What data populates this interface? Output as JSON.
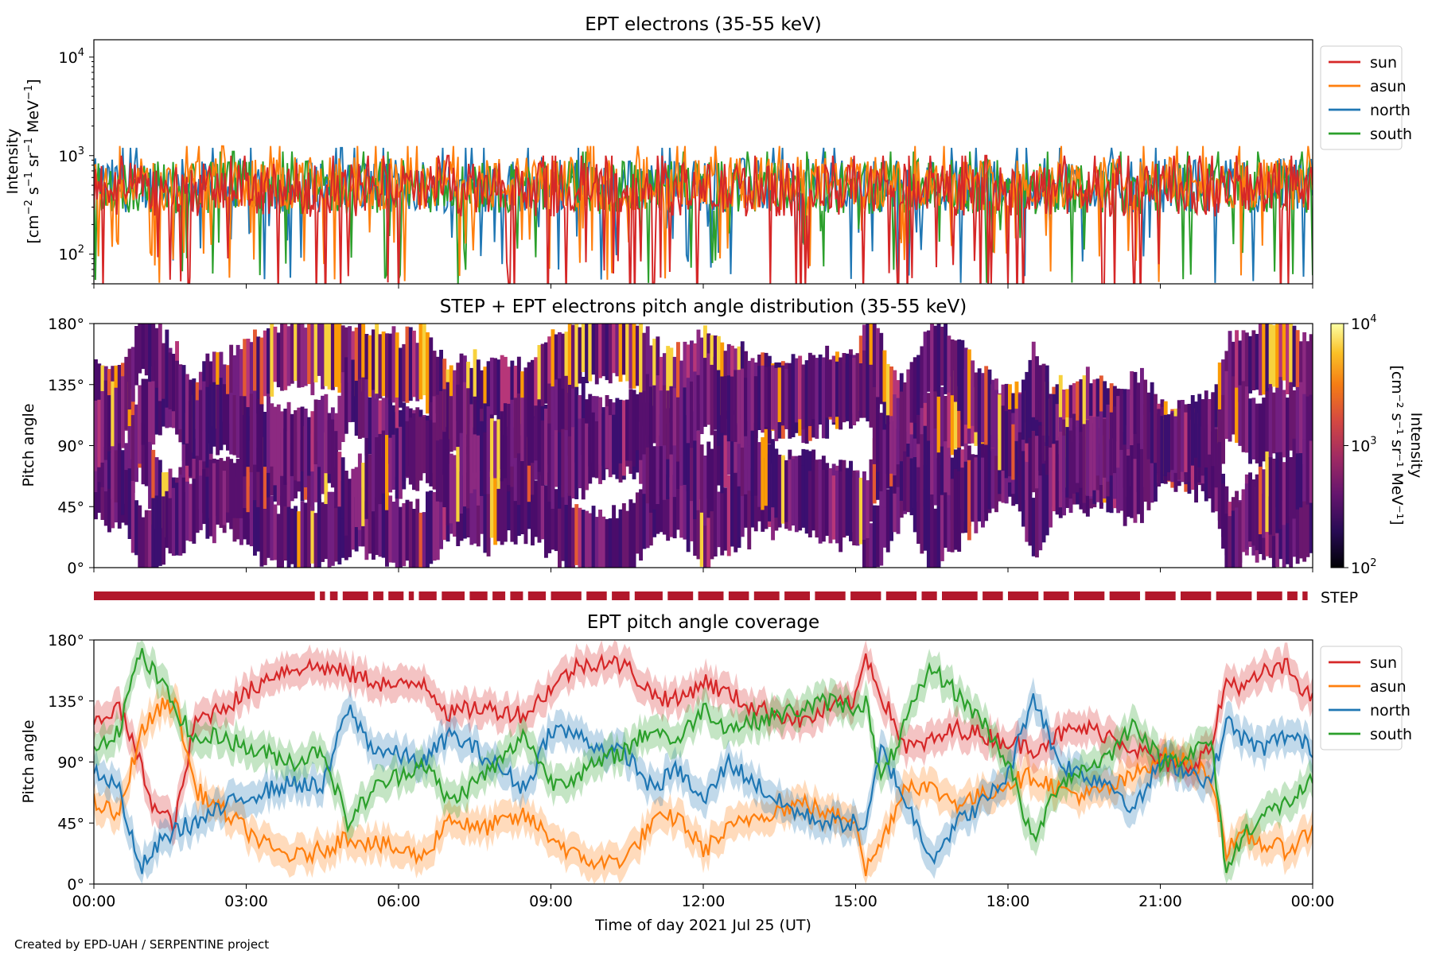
{
  "credit": "Created by EPD-UAH / SERPENTINE project",
  "x_axis": {
    "label": "Time of day 2021 Jul 25 (UT)",
    "ticks": [
      "00:00",
      "03:00",
      "06:00",
      "09:00",
      "12:00",
      "15:00",
      "18:00",
      "21:00",
      "00:00"
    ],
    "range_hours": [
      0,
      24
    ]
  },
  "colors": {
    "sun": "#d62728",
    "asun": "#ff7f0e",
    "north": "#1f77b4",
    "south": "#2ca02c",
    "step_bar": "#b2182b"
  },
  "legend": {
    "entries": [
      "sun",
      "asun",
      "north",
      "south"
    ],
    "placement": "outside-right"
  },
  "chart_data": [
    {
      "type": "line",
      "title": "EPT electrons (35-55 keV)",
      "ylabel_main": "Intensity",
      "ylabel_unit_base": "[cm",
      "ylabel_unit_exp1": "−2",
      "ylabel_unit_mid1": " s",
      "ylabel_unit_exp2": "−1",
      "ylabel_unit_mid2": " sr",
      "ylabel_unit_exp3": "−1",
      "ylabel_unit_mid3": " MeV",
      "ylabel_unit_exp4": "−1",
      "ylabel_unit_end": "]",
      "yscale": "log",
      "ylim": [
        50,
        15000
      ],
      "yticks": [
        {
          "base": "10",
          "exp": "2",
          "value": 100
        },
        {
          "base": "10",
          "exp": "3",
          "value": 1000
        },
        {
          "base": "10",
          "exp": "4",
          "value": 10000
        }
      ],
      "series": [
        {
          "name": "north",
          "typical_value": 500,
          "min_typical": 200,
          "max_typical": 1200
        },
        {
          "name": "south",
          "typical_value": 480,
          "min_typical": 180,
          "max_typical": 1100
        },
        {
          "name": "asun",
          "typical_value": 520,
          "min_typical": 200,
          "max_typical": 1250
        },
        {
          "name": "sun",
          "typical_value": 450,
          "min_typical": 100,
          "max_typical": 1000
        }
      ]
    },
    {
      "type": "heatmap",
      "title": "STEP + EPT electrons pitch angle distribution (35-55 keV)",
      "ylabel": "Pitch angle",
      "ylim": [
        0,
        180
      ],
      "yticks": [
        "0°",
        "45°",
        "90°",
        "135°",
        "180°"
      ],
      "colorbar": {
        "label_main": "Intensity",
        "label_unit": "[cm⁻² s⁻¹ sr⁻¹ MeV⁻¹]",
        "scale": "log",
        "range": [
          100,
          10000
        ],
        "ticks": [
          {
            "base": "10",
            "exp": "2",
            "value": 100
          },
          {
            "base": "10",
            "exp": "3",
            "value": 1000
          },
          {
            "base": "10",
            "exp": "4",
            "value": 10000
          }
        ],
        "colormap": "inferno"
      },
      "step_label": "STEP"
    },
    {
      "type": "line",
      "title": "EPT pitch angle coverage",
      "ylabel": "Pitch angle",
      "ylim": [
        0,
        180
      ],
      "yticks": [
        "0°",
        "45°",
        "90°",
        "135°",
        "180°"
      ],
      "series": [
        {
          "name": "sun",
          "keyframes": [
            [
              0,
              120
            ],
            [
              0.5,
              130
            ],
            [
              0.9,
              90
            ],
            [
              1.2,
              55
            ],
            [
              1.6,
              45
            ],
            [
              2.0,
              120
            ],
            [
              2.5,
              130
            ],
            [
              3.0,
              140
            ],
            [
              3.5,
              155
            ],
            [
              4.0,
              160
            ],
            [
              4.5,
              160
            ],
            [
              5.0,
              155
            ],
            [
              5.5,
              150
            ],
            [
              6.0,
              145
            ],
            [
              6.5,
              150
            ],
            [
              7.0,
              125
            ],
            [
              7.5,
              130
            ],
            [
              8.0,
              128
            ],
            [
              8.5,
              125
            ],
            [
              9.0,
              145
            ],
            [
              9.5,
              160
            ],
            [
              10.0,
              165
            ],
            [
              10.5,
              160
            ],
            [
              11.0,
              140
            ],
            [
              11.5,
              135
            ],
            [
              12.0,
              150
            ],
            [
              12.5,
              140
            ],
            [
              13.0,
              130
            ],
            [
              13.5,
              125
            ],
            [
              14.0,
              120
            ],
            [
              14.5,
              130
            ],
            [
              15.0,
              135
            ],
            [
              15.2,
              170
            ],
            [
              15.5,
              140
            ],
            [
              16.0,
              100
            ],
            [
              16.5,
              105
            ],
            [
              17.0,
              115
            ],
            [
              17.5,
              110
            ],
            [
              18.0,
              105
            ],
            [
              18.5,
              100
            ],
            [
              19.0,
              110
            ],
            [
              19.5,
              115
            ],
            [
              20.0,
              110
            ],
            [
              20.5,
              100
            ],
            [
              21.0,
              90
            ],
            [
              21.5,
              85
            ],
            [
              22.0,
              100
            ],
            [
              22.3,
              150
            ],
            [
              22.7,
              145
            ],
            [
              23.0,
              155
            ],
            [
              23.5,
              160
            ],
            [
              24.0,
              135
            ]
          ]
        },
        {
          "name": "asun",
          "keyframes": [
            [
              0,
              60
            ],
            [
              0.5,
              50
            ],
            [
              0.9,
              110
            ],
            [
              1.3,
              130
            ],
            [
              1.6,
              135
            ],
            [
              2.0,
              70
            ],
            [
              2.5,
              55
            ],
            [
              3.0,
              40
            ],
            [
              3.5,
              25
            ],
            [
              4.0,
              20
            ],
            [
              4.5,
              25
            ],
            [
              5.0,
              35
            ],
            [
              5.5,
              30
            ],
            [
              6.0,
              25
            ],
            [
              6.5,
              20
            ],
            [
              7.0,
              50
            ],
            [
              7.5,
              40
            ],
            [
              8.0,
              45
            ],
            [
              8.5,
              50
            ],
            [
              9.0,
              35
            ],
            [
              9.5,
              20
            ],
            [
              10.0,
              15
            ],
            [
              10.5,
              20
            ],
            [
              11.0,
              45
            ],
            [
              11.5,
              50
            ],
            [
              12.0,
              25
            ],
            [
              12.5,
              40
            ],
            [
              13.0,
              50
            ],
            [
              13.5,
              55
            ],
            [
              14.0,
              60
            ],
            [
              14.5,
              50
            ],
            [
              15.0,
              50
            ],
            [
              15.2,
              10
            ],
            [
              15.5,
              30
            ],
            [
              16.0,
              75
            ],
            [
              16.5,
              70
            ],
            [
              17.0,
              60
            ],
            [
              17.5,
              65
            ],
            [
              18.0,
              75
            ],
            [
              18.5,
              80
            ],
            [
              19.0,
              70
            ],
            [
              19.5,
              65
            ],
            [
              20.0,
              70
            ],
            [
              20.5,
              80
            ],
            [
              21.0,
              95
            ],
            [
              21.5,
              90
            ],
            [
              22.0,
              80
            ],
            [
              22.3,
              25
            ],
            [
              22.7,
              35
            ],
            [
              23.0,
              30
            ],
            [
              23.5,
              25
            ],
            [
              24.0,
              40
            ]
          ]
        },
        {
          "name": "north",
          "keyframes": [
            [
              0,
              85
            ],
            [
              0.5,
              70
            ],
            [
              0.9,
              10
            ],
            [
              1.3,
              30
            ],
            [
              1.6,
              40
            ],
            [
              2.0,
              45
            ],
            [
              2.5,
              55
            ],
            [
              3.0,
              65
            ],
            [
              3.5,
              70
            ],
            [
              4.0,
              75
            ],
            [
              4.5,
              70
            ],
            [
              5.0,
              130
            ],
            [
              5.5,
              100
            ],
            [
              6.0,
              95
            ],
            [
              6.5,
              90
            ],
            [
              7.0,
              110
            ],
            [
              7.5,
              100
            ],
            [
              8.0,
              85
            ],
            [
              8.5,
              70
            ],
            [
              9.0,
              115
            ],
            [
              9.5,
              110
            ],
            [
              10.0,
              100
            ],
            [
              10.5,
              95
            ],
            [
              11.0,
              70
            ],
            [
              11.5,
              85
            ],
            [
              12.0,
              60
            ],
            [
              12.5,
              90
            ],
            [
              13.0,
              75
            ],
            [
              13.5,
              60
            ],
            [
              14.0,
              50
            ],
            [
              14.5,
              45
            ],
            [
              15.0,
              45
            ],
            [
              15.2,
              40
            ],
            [
              15.5,
              100
            ],
            [
              16.0,
              60
            ],
            [
              16.5,
              20
            ],
            [
              17.0,
              45
            ],
            [
              17.5,
              60
            ],
            [
              18.0,
              80
            ],
            [
              18.5,
              140
            ],
            [
              19.0,
              90
            ],
            [
              19.5,
              80
            ],
            [
              20.0,
              75
            ],
            [
              20.5,
              55
            ],
            [
              21.0,
              90
            ],
            [
              21.5,
              85
            ],
            [
              22.0,
              75
            ],
            [
              22.3,
              120
            ],
            [
              22.7,
              105
            ],
            [
              23.0,
              100
            ],
            [
              23.5,
              110
            ],
            [
              24.0,
              100
            ]
          ]
        },
        {
          "name": "south",
          "keyframes": [
            [
              0,
              100
            ],
            [
              0.5,
              115
            ],
            [
              0.9,
              170
            ],
            [
              1.3,
              150
            ],
            [
              1.6,
              130
            ],
            [
              2.0,
              105
            ],
            [
              2.5,
              110
            ],
            [
              3.0,
              100
            ],
            [
              3.5,
              95
            ],
            [
              4.0,
              90
            ],
            [
              4.5,
              100
            ],
            [
              5.0,
              45
            ],
            [
              5.5,
              70
            ],
            [
              6.0,
              80
            ],
            [
              6.5,
              90
            ],
            [
              7.0,
              60
            ],
            [
              7.5,
              75
            ],
            [
              8.0,
              90
            ],
            [
              8.5,
              110
            ],
            [
              9.0,
              75
            ],
            [
              9.5,
              80
            ],
            [
              10.0,
              90
            ],
            [
              10.5,
              100
            ],
            [
              11.0,
              115
            ],
            [
              11.5,
              105
            ],
            [
              12.0,
              130
            ],
            [
              12.5,
              115
            ],
            [
              13.0,
              120
            ],
            [
              13.5,
              125
            ],
            [
              14.0,
              130
            ],
            [
              14.5,
              135
            ],
            [
              15.0,
              130
            ],
            [
              15.2,
              135
            ],
            [
              15.5,
              75
            ],
            [
              16.0,
              120
            ],
            [
              16.5,
              160
            ],
            [
              17.0,
              140
            ],
            [
              17.5,
              120
            ],
            [
              18.0,
              90
            ],
            [
              18.5,
              30
            ],
            [
              19.0,
              75
            ],
            [
              19.5,
              85
            ],
            [
              20.0,
              95
            ],
            [
              20.5,
              120
            ],
            [
              21.0,
              90
            ],
            [
              21.5,
              95
            ],
            [
              22.0,
              105
            ],
            [
              22.3,
              10
            ],
            [
              22.7,
              40
            ],
            [
              23.0,
              50
            ],
            [
              23.5,
              60
            ],
            [
              24.0,
              75
            ]
          ]
        }
      ]
    }
  ]
}
